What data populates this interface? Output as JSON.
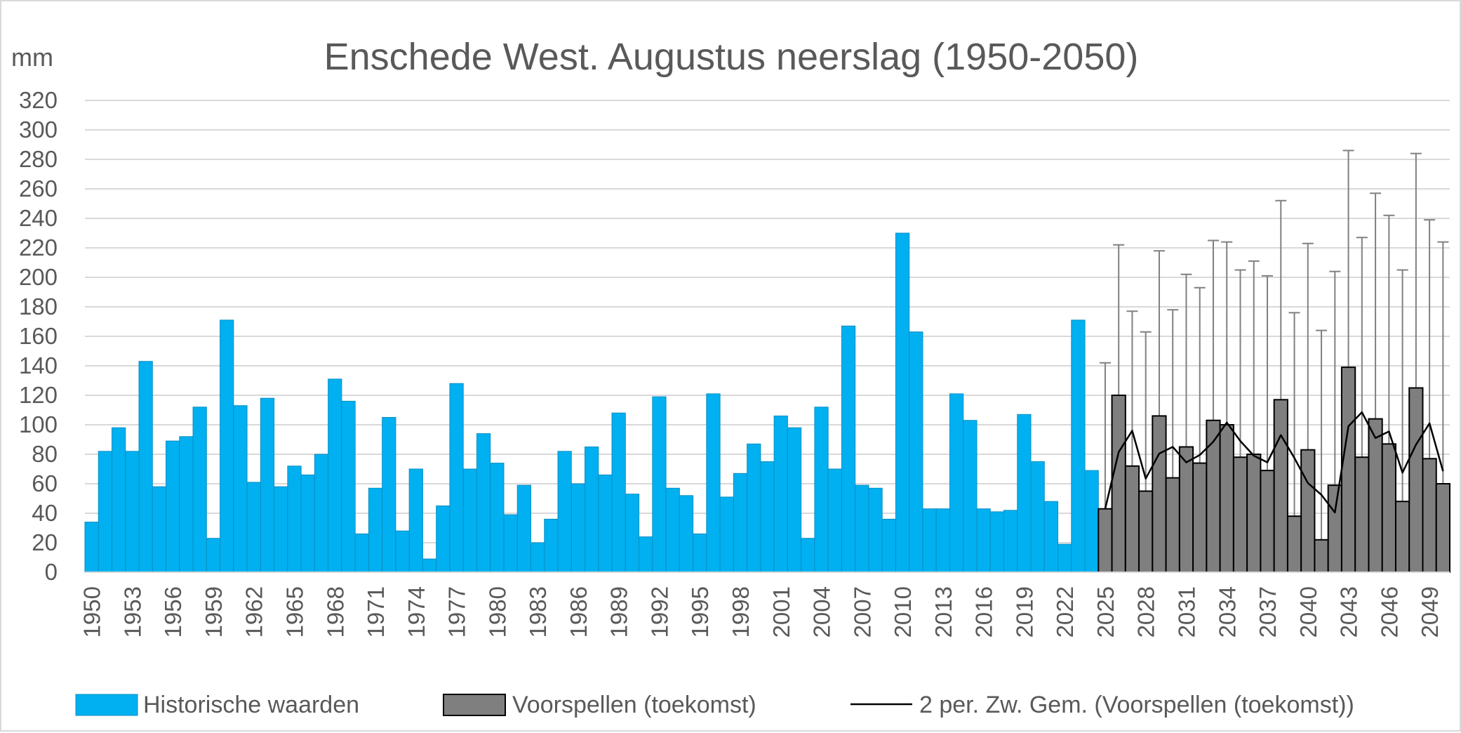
{
  "chart_data": {
    "type": "bar",
    "title": "Enschede West. Augustus neerslag (1950-2050)",
    "ylabel": "mm",
    "ylim": [
      0,
      320
    ],
    "yticks": [
      "0",
      "20",
      "40",
      "60",
      "80",
      "100",
      "120",
      "140",
      "160",
      "180",
      "200",
      "220",
      "240",
      "260",
      "280",
      "300",
      "320"
    ],
    "xtick_labels": [
      "1950",
      "1953",
      "1956",
      "1959",
      "1962",
      "1965",
      "1968",
      "1971",
      "1974",
      "1977",
      "1980",
      "1983",
      "1986",
      "1989",
      "1992",
      "1995",
      "1998",
      "2001",
      "2004",
      "2007",
      "2010",
      "2013",
      "2016",
      "2019",
      "2022",
      "2025",
      "2028",
      "2031",
      "2034",
      "2037",
      "2040",
      "2043",
      "2046",
      "2049"
    ],
    "grid": true,
    "legend_position": "bottom",
    "colors": {
      "historical": "#00b0f0",
      "forecast": "#7f7f7f",
      "moving_average": "#000000",
      "error_bar": "#808080",
      "grid": "#d9d9d9",
      "text": "#595959"
    },
    "series": [
      {
        "name": "Historische waarden",
        "x": [
          1950,
          1951,
          1952,
          1953,
          1954,
          1955,
          1956,
          1957,
          1958,
          1959,
          1960,
          1961,
          1962,
          1963,
          1964,
          1965,
          1966,
          1967,
          1968,
          1969,
          1970,
          1971,
          1972,
          1973,
          1974,
          1975,
          1976,
          1977,
          1978,
          1979,
          1980,
          1981,
          1982,
          1983,
          1984,
          1985,
          1986,
          1987,
          1988,
          1989,
          1990,
          1991,
          1992,
          1993,
          1994,
          1995,
          1996,
          1997,
          1998,
          1999,
          2000,
          2001,
          2002,
          2003,
          2004,
          2005,
          2006,
          2007,
          2008,
          2009,
          2010,
          2011,
          2012,
          2013,
          2014,
          2015,
          2016,
          2017,
          2018,
          2019,
          2020,
          2021,
          2022,
          2023,
          2024
        ],
        "values": [
          34,
          82,
          98,
          82,
          143,
          58,
          89,
          92,
          112,
          23,
          171,
          113,
          61,
          118,
          58,
          72,
          66,
          80,
          131,
          116,
          26,
          57,
          105,
          28,
          70,
          9,
          45,
          128,
          70,
          94,
          74,
          39,
          59,
          20,
          36,
          82,
          60,
          85,
          66,
          108,
          53,
          24,
          119,
          57,
          52,
          26,
          121,
          51,
          67,
          87,
          75,
          106,
          98,
          23,
          112,
          70,
          167,
          59,
          57,
          36,
          230,
          163,
          43,
          43,
          121,
          103,
          43,
          41,
          42,
          107,
          75,
          48,
          19,
          171,
          69
        ]
      },
      {
        "name": "Voorspellen (toekomst)",
        "x": [
          2025,
          2026,
          2027,
          2028,
          2029,
          2030,
          2031,
          2032,
          2033,
          2034,
          2035,
          2036,
          2037,
          2038,
          2039,
          2040,
          2041,
          2042,
          2043,
          2044,
          2045,
          2046,
          2047,
          2048,
          2049,
          2050
        ],
        "values": [
          43,
          120,
          72,
          55,
          106,
          64,
          85,
          74,
          103,
          100,
          78,
          80,
          69,
          117,
          38,
          83,
          22,
          59,
          139,
          78,
          104,
          87,
          48,
          125,
          77,
          60
        ],
        "upper": [
          142,
          222,
          177,
          163,
          218,
          178,
          202,
          193,
          225,
          224,
          205,
          211,
          201,
          252,
          176,
          223,
          164,
          204,
          286,
          227,
          257,
          242,
          205,
          284,
          239,
          224
        ]
      },
      {
        "name": "2 per. Zw. Gem. (Voorspellen (toekomst))",
        "type": "line",
        "x": [
          2025,
          2026,
          2027,
          2028,
          2029,
          2030,
          2031,
          2032,
          2033,
          2034,
          2035,
          2036,
          2037,
          2038,
          2039,
          2040,
          2041,
          2042,
          2043,
          2044,
          2045,
          2046,
          2047,
          2048,
          2049,
          2050
        ],
        "values": [
          43,
          81.5,
          96,
          63.5,
          80.5,
          85,
          74.5,
          79.5,
          88.5,
          101.5,
          89,
          79,
          74.5,
          93,
          77.5,
          60.5,
          52.5,
          40.5,
          99,
          108.5,
          91,
          95.5,
          67.5,
          86.5,
          101,
          68.5
        ]
      }
    ]
  }
}
